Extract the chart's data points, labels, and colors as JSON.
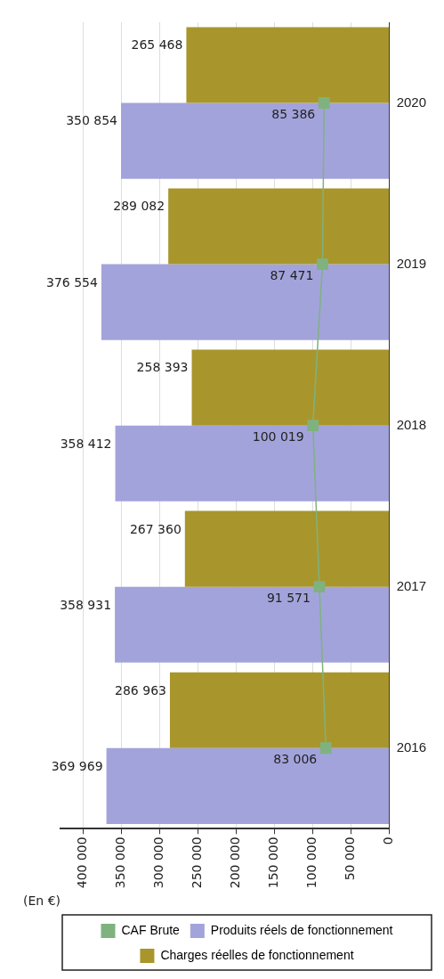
{
  "chart_data": {
    "type": "bar",
    "orientation": "horizontal",
    "xlabel": "(En €)",
    "categories": [
      "2020",
      "2019",
      "2018",
      "2017",
      "2016"
    ],
    "series": [
      {
        "name": "CAF Brute",
        "type": "line",
        "marker": "square",
        "color": "#7fb27f",
        "values": [
          85386,
          87471,
          100019,
          91571,
          83006
        ],
        "value_labels": [
          "85 386",
          "87 471",
          "100 019",
          "91 571",
          "83 006"
        ]
      },
      {
        "name": "Produits réels de fonctionnement",
        "color": "#a3a3db",
        "values": [
          350854,
          376554,
          358412,
          358931,
          369969
        ],
        "value_labels": [
          "350 854",
          "376 554",
          "358 412",
          "358 931",
          "369 969"
        ]
      },
      {
        "name": "Charges réelles de fonctionnement",
        "color": "#a8962c",
        "values": [
          265468,
          289082,
          258393,
          267360,
          286963
        ],
        "value_labels": [
          "265 468",
          "289 082",
          "258 393",
          "267 360",
          "286 963"
        ]
      }
    ],
    "xlim": [
      430000,
      0
    ],
    "xticks": [
      {
        "value": 400000,
        "label": "400 000"
      },
      {
        "value": 350000,
        "label": "350 000"
      },
      {
        "value": 300000,
        "label": "300 000"
      },
      {
        "value": 250000,
        "label": "250 000"
      },
      {
        "value": 200000,
        "label": "200 000"
      },
      {
        "value": 150000,
        "label": "150 000"
      },
      {
        "value": 100000,
        "label": "100 000"
      },
      {
        "value": 50000,
        "label": "50 000"
      },
      {
        "value": 0,
        "label": "0"
      }
    ],
    "grid": "x",
    "legend": "bottom"
  }
}
